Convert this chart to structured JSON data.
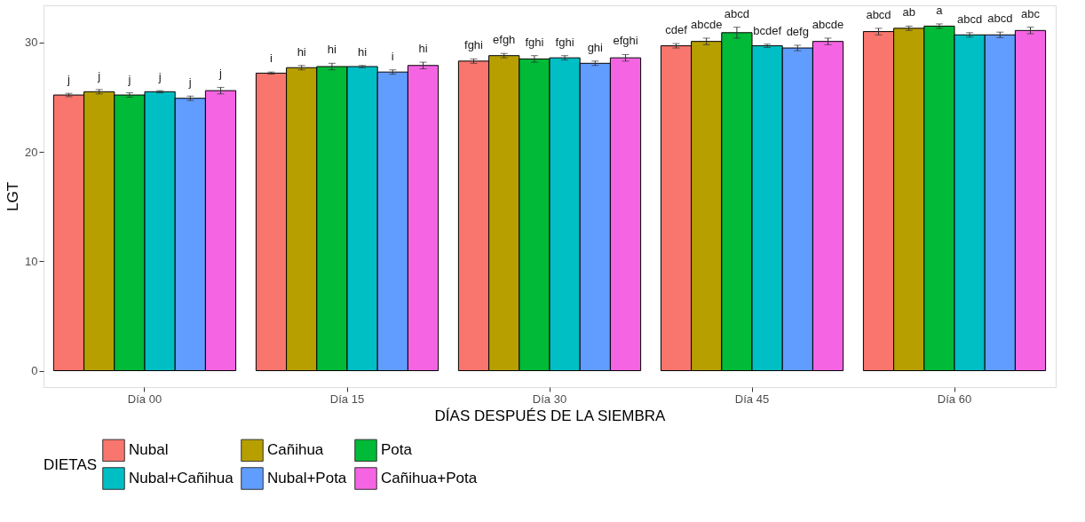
{
  "chart_data": {
    "type": "bar",
    "xlabel": "DÍAS DESPUÉS DE LA SIEMBRA",
    "ylabel": "LGT",
    "legend_title": "DIETAS",
    "legend": "bottom",
    "grid": false,
    "categories": [
      "Día 00",
      "Día 15",
      "Día 30",
      "Día 45",
      "Día 60"
    ],
    "ylim": [
      -1.5,
      33.4
    ],
    "yticks": [
      0,
      10,
      20,
      30
    ],
    "series": [
      {
        "name": "Nubal",
        "color": "#f8766d",
        "values": [
          25.2,
          27.2,
          28.3,
          29.7,
          31.0
        ],
        "errors": [
          0.15,
          0.1,
          0.2,
          0.2,
          0.3
        ],
        "value_labels": [
          "j",
          "i",
          "fghi",
          "cdef",
          "abcd"
        ]
      },
      {
        "name": "Cañihua",
        "color": "#b79f00",
        "values": [
          25.5,
          27.7,
          28.8,
          30.1,
          31.3
        ],
        "errors": [
          0.2,
          0.2,
          0.2,
          0.3,
          0.2
        ],
        "value_labels": [
          "j",
          "hi",
          "efgh",
          "abcde",
          "ab"
        ]
      },
      {
        "name": "Pota",
        "color": "#00ba38",
        "values": [
          25.2,
          27.8,
          28.5,
          30.9,
          31.5
        ],
        "errors": [
          0.2,
          0.3,
          0.3,
          0.5,
          0.2
        ],
        "value_labels": [
          "j",
          "hi",
          "fghi",
          "abcd",
          "a"
        ]
      },
      {
        "name": "Nubal+Cañihua",
        "color": "#00bfc4",
        "values": [
          25.5,
          27.8,
          28.6,
          29.7,
          30.7
        ],
        "errors": [
          0.1,
          0.1,
          0.2,
          0.15,
          0.2
        ],
        "value_labels": [
          "j",
          "hi",
          "fghi",
          "bcdef",
          "abcd"
        ]
      },
      {
        "name": "Nubal+Pota",
        "color": "#619cff",
        "values": [
          24.9,
          27.3,
          28.1,
          29.5,
          30.7
        ],
        "errors": [
          0.2,
          0.2,
          0.2,
          0.25,
          0.25
        ],
        "value_labels": [
          "j",
          "i",
          "ghi",
          "defg",
          "abcd"
        ]
      },
      {
        "name": "Cañihua+Pota",
        "color": "#f564e3",
        "values": [
          25.6,
          27.9,
          28.6,
          30.1,
          31.1
        ],
        "errors": [
          0.3,
          0.3,
          0.3,
          0.3,
          0.3
        ],
        "value_labels": [
          "j",
          "hi",
          "efghi",
          "abcde",
          "abc"
        ]
      }
    ]
  }
}
